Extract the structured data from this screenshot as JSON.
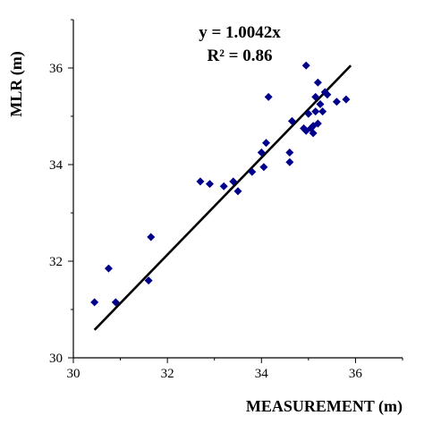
{
  "chart_data": {
    "type": "scatter",
    "xlabel": "MEASUREMENT (m)",
    "ylabel": "MLR (m)",
    "xlim": [
      30,
      37
    ],
    "ylim": [
      30,
      37
    ],
    "x_ticks": [
      "30",
      "32",
      "34",
      "36"
    ],
    "y_ticks": [
      "30",
      "32",
      "34",
      "36"
    ],
    "grid": false,
    "marker": "diamond",
    "colors": {
      "points": "#00008b",
      "trendline": "#000000"
    },
    "annotations": {
      "equation": "y = 1.0042x",
      "r_squared": "R² = 0.86"
    },
    "trendline": {
      "type": "linear",
      "x_start": 30.45,
      "x_end": 35.9,
      "slope": 1.0042
    },
    "series": [
      {
        "x": [
          30.45,
          30.75,
          30.9,
          31.6,
          31.65,
          32.7,
          32.9,
          33.2,
          33.4,
          33.5,
          33.8,
          34.0,
          34.05,
          34.1,
          34.15,
          34.6,
          34.6,
          34.65,
          34.9,
          34.95,
          34.95,
          35.0,
          35.05,
          35.1,
          35.1,
          35.15,
          35.15,
          35.2,
          35.2,
          35.25,
          35.3,
          35.35,
          35.4,
          35.6,
          35.8
        ],
        "y": [
          31.15,
          31.85,
          31.15,
          31.6,
          32.5,
          33.65,
          33.6,
          33.55,
          33.65,
          33.45,
          33.85,
          34.25,
          33.95,
          34.45,
          35.4,
          34.05,
          34.25,
          34.9,
          34.75,
          34.7,
          36.05,
          35.05,
          34.75,
          34.65,
          34.8,
          35.1,
          35.4,
          34.85,
          35.7,
          35.25,
          35.1,
          35.5,
          35.45,
          35.3,
          35.35
        ]
      }
    ]
  }
}
